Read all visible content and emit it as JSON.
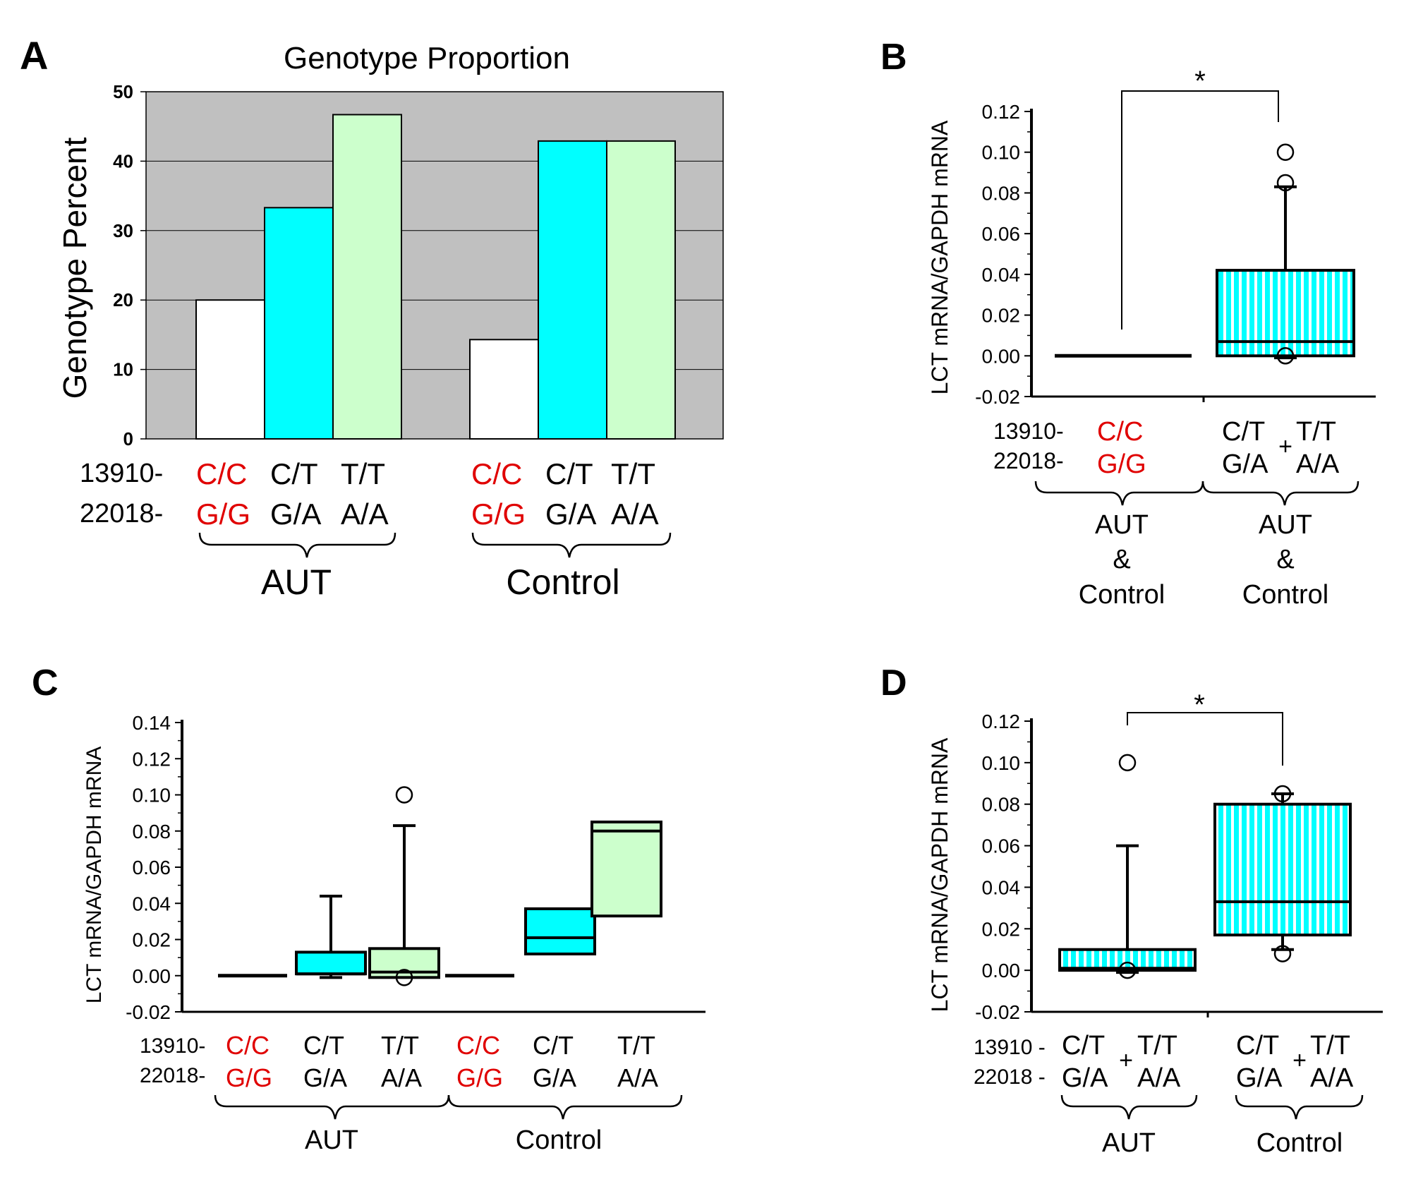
{
  "colors": {
    "cyan": "#00ffff",
    "light_green": "#ccffcc",
    "white": "#ffffff",
    "plot_bg": "#c0c0c0",
    "red": "#e00000"
  },
  "common": {
    "row1_prefix": "13910-",
    "row2_prefix": "22018-",
    "row1_prefix_d": "13910 -",
    "row2_prefix_d": "22018 -",
    "plus": "+",
    "star": "*",
    "and": "&",
    "g_cc": "C/C",
    "g_gg": "G/G",
    "g_ct": "C/T",
    "g_ga": "G/A",
    "g_tt": "T/T",
    "g_aa": "A/A",
    "aut": "AUT",
    "control": "Control"
  },
  "chart_data": [
    {
      "panel": "A",
      "type": "bar",
      "title": "Genotype Proportion",
      "ylabel": "Genotype Percent",
      "xlabel": "",
      "ylim": [
        0,
        50
      ],
      "yticks": [
        "0",
        "10",
        "20",
        "30",
        "40",
        "50"
      ],
      "grid": true,
      "groups": [
        "AUT",
        "Control"
      ],
      "categories": [
        "C/C G/G",
        "C/T G/A",
        "T/T A/A"
      ],
      "series": [
        {
          "name": "AUT",
          "values": [
            20,
            33.3,
            46.7
          ]
        },
        {
          "name": "Control",
          "values": [
            14.3,
            42.9,
            42.9
          ]
        }
      ]
    },
    {
      "panel": "B",
      "type": "box",
      "ylabel": "LCT mRNA/GAPDH mRNA",
      "ylim": [
        -0.02,
        0.12
      ],
      "yticks": [
        "-0.02",
        "0.00",
        "0.02",
        "0.04",
        "0.06",
        "0.08",
        "0.10",
        "0.12"
      ],
      "categories": [
        "C/C G/G (AUT & Control)",
        "C/T G/A + T/T A/A (AUT & Control)"
      ],
      "boxes": [
        {
          "min": 0,
          "q1": 0,
          "median": 0,
          "q3": 0,
          "max": 0,
          "outliers": []
        },
        {
          "min": -0.001,
          "q1": 0.0,
          "median": 0.007,
          "q3": 0.042,
          "max": 0.083,
          "outliers": [
            0.1,
            0.085,
            0.0
          ]
        }
      ],
      "significance": "*"
    },
    {
      "panel": "C",
      "type": "box",
      "ylabel": "LCT mRNA/GAPDH mRNA",
      "ylim": [
        -0.02,
        0.14
      ],
      "yticks": [
        "-0.02",
        "0.00",
        "0.02",
        "0.04",
        "0.06",
        "0.08",
        "0.10",
        "0.12",
        "0.14"
      ],
      "categories": [
        "AUT C/C G/G",
        "AUT C/T G/A",
        "AUT T/T A/A",
        "Control C/C G/G",
        "Control C/T G/A",
        "Control T/T A/A"
      ],
      "boxes": [
        {
          "min": 0,
          "q1": 0,
          "median": 0,
          "q3": 0,
          "max": 0,
          "outliers": []
        },
        {
          "min": -0.001,
          "q1": 0.001,
          "median": 0.001,
          "q3": 0.013,
          "max": 0.044,
          "outliers": []
        },
        {
          "min": -0.001,
          "q1": -0.001,
          "median": 0.002,
          "q3": 0.015,
          "max": 0.083,
          "outliers": [
            0.1,
            -0.001
          ]
        },
        {
          "min": 0,
          "q1": 0,
          "median": 0,
          "q3": 0,
          "max": 0,
          "outliers": []
        },
        {
          "min": 0.012,
          "q1": 0.012,
          "median": 0.021,
          "q3": 0.037,
          "max": 0.037,
          "outliers": []
        },
        {
          "min": 0.033,
          "q1": 0.033,
          "median": 0.08,
          "q3": 0.085,
          "max": 0.085,
          "outliers": []
        }
      ]
    },
    {
      "panel": "D",
      "type": "box",
      "ylabel": "LCT mRNA/GAPDH mRNA",
      "ylim": [
        -0.02,
        0.12
      ],
      "yticks": [
        "-0.02",
        "0.00",
        "0.02",
        "0.04",
        "0.06",
        "0.08",
        "0.10",
        "0.12"
      ],
      "categories": [
        "AUT C/T G/A + T/T A/A",
        "Control C/T G/A + T/T A/A"
      ],
      "boxes": [
        {
          "min": -0.001,
          "q1": 0.0,
          "median": 0.001,
          "q3": 0.01,
          "max": 0.06,
          "outliers": [
            0.1,
            0.0
          ]
        },
        {
          "min": 0.01,
          "q1": 0.017,
          "median": 0.033,
          "q3": 0.08,
          "max": 0.085,
          "outliers": [
            0.085,
            0.008
          ]
        }
      ],
      "significance": "*"
    }
  ]
}
